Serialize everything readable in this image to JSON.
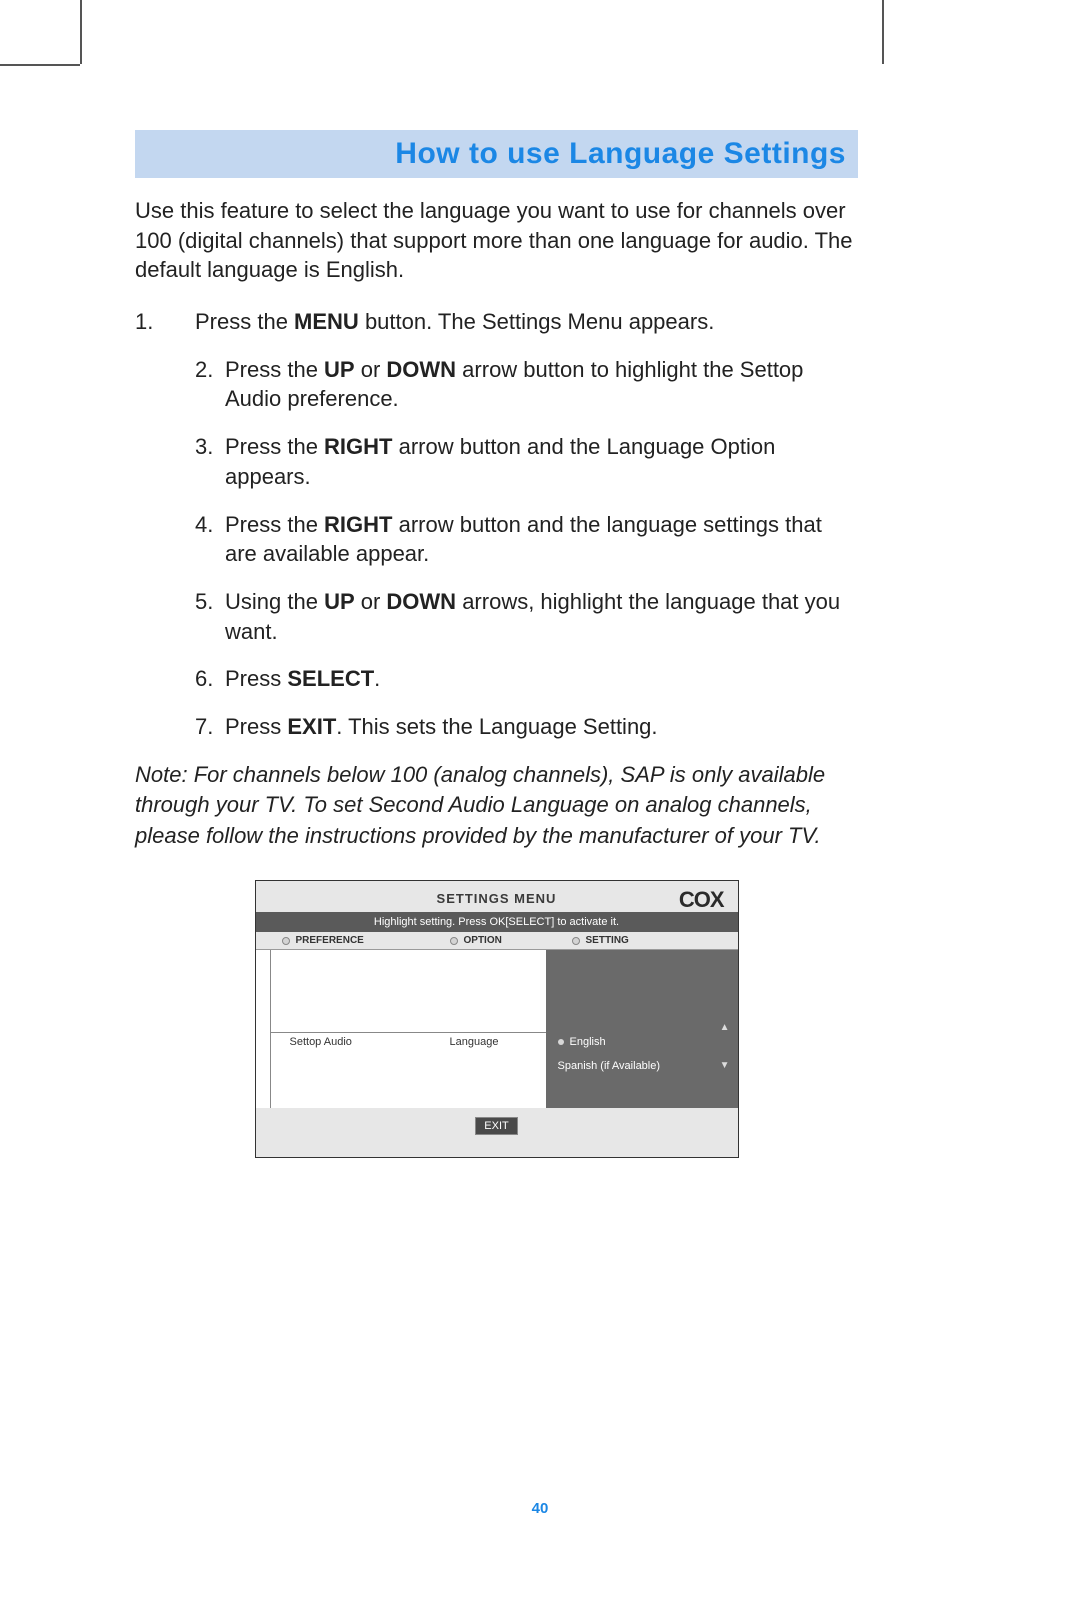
{
  "title": "How to use Language Settings",
  "intro": "Use this feature to select the language you want to use for channels over 100 (digital channels) that support more than one language for audio. The default language is English.",
  "steps": {
    "s1_pre": "Press the ",
    "s1_b1": "MENU",
    "s1_post": " button.  The Settings Menu appears.",
    "s2_pre": "Press the ",
    "s2_b1": "UP",
    "s2_mid": " or ",
    "s2_b2": "DOWN",
    "s2_post": " arrow button to highlight the Settop Audio preference.",
    "s3_pre": "Press the ",
    "s3_b1": "RIGHT",
    "s3_post": " arrow button and the Language Option appears.",
    "s4_pre": "Press the ",
    "s4_b1": "RIGHT",
    "s4_post": " arrow button and the language settings that are available appear.",
    "s5_pre": "Using the ",
    "s5_b1": "UP",
    "s5_mid": " or ",
    "s5_b2": "DOWN",
    "s5_post": " arrows, highlight the language that you want.",
    "s6_pre": "Press ",
    "s6_b1": "SELECT",
    "s6_post": ".",
    "s7_pre": "Press ",
    "s7_b1": "EXIT",
    "s7_post": ". This sets the Language Setting."
  },
  "nums": {
    "n1": "1.",
    "n2": "2.",
    "n3": "3.",
    "n4": "4.",
    "n5": "5.",
    "n6": "6.",
    "n7": "7."
  },
  "note": "Note: For channels below 100 (analog channels), SAP is only available through your TV.  To set Second Audio Language on analog channels, please follow the instructions provided by the manufacturer of your TV.",
  "menu": {
    "title": "SETTINGS MENU",
    "logo": "COX",
    "instruction": "Highlight setting.  Press OK[SELECT] to activate it.",
    "col_preference": "PREFERENCE",
    "col_option": "OPTION",
    "col_setting": "SETTING",
    "preference_value": "Settop Audio",
    "option_value": "Language",
    "setting_english": "English",
    "setting_spanish": "Spanish (if Available)",
    "exit": "EXIT"
  },
  "page_number": "40",
  "colors": {
    "banner_bg": "#c3d7f0",
    "banner_text": "#1b87e5",
    "menu_dark": "#6a6a6a",
    "menu_bar": "#5a5a5a"
  }
}
